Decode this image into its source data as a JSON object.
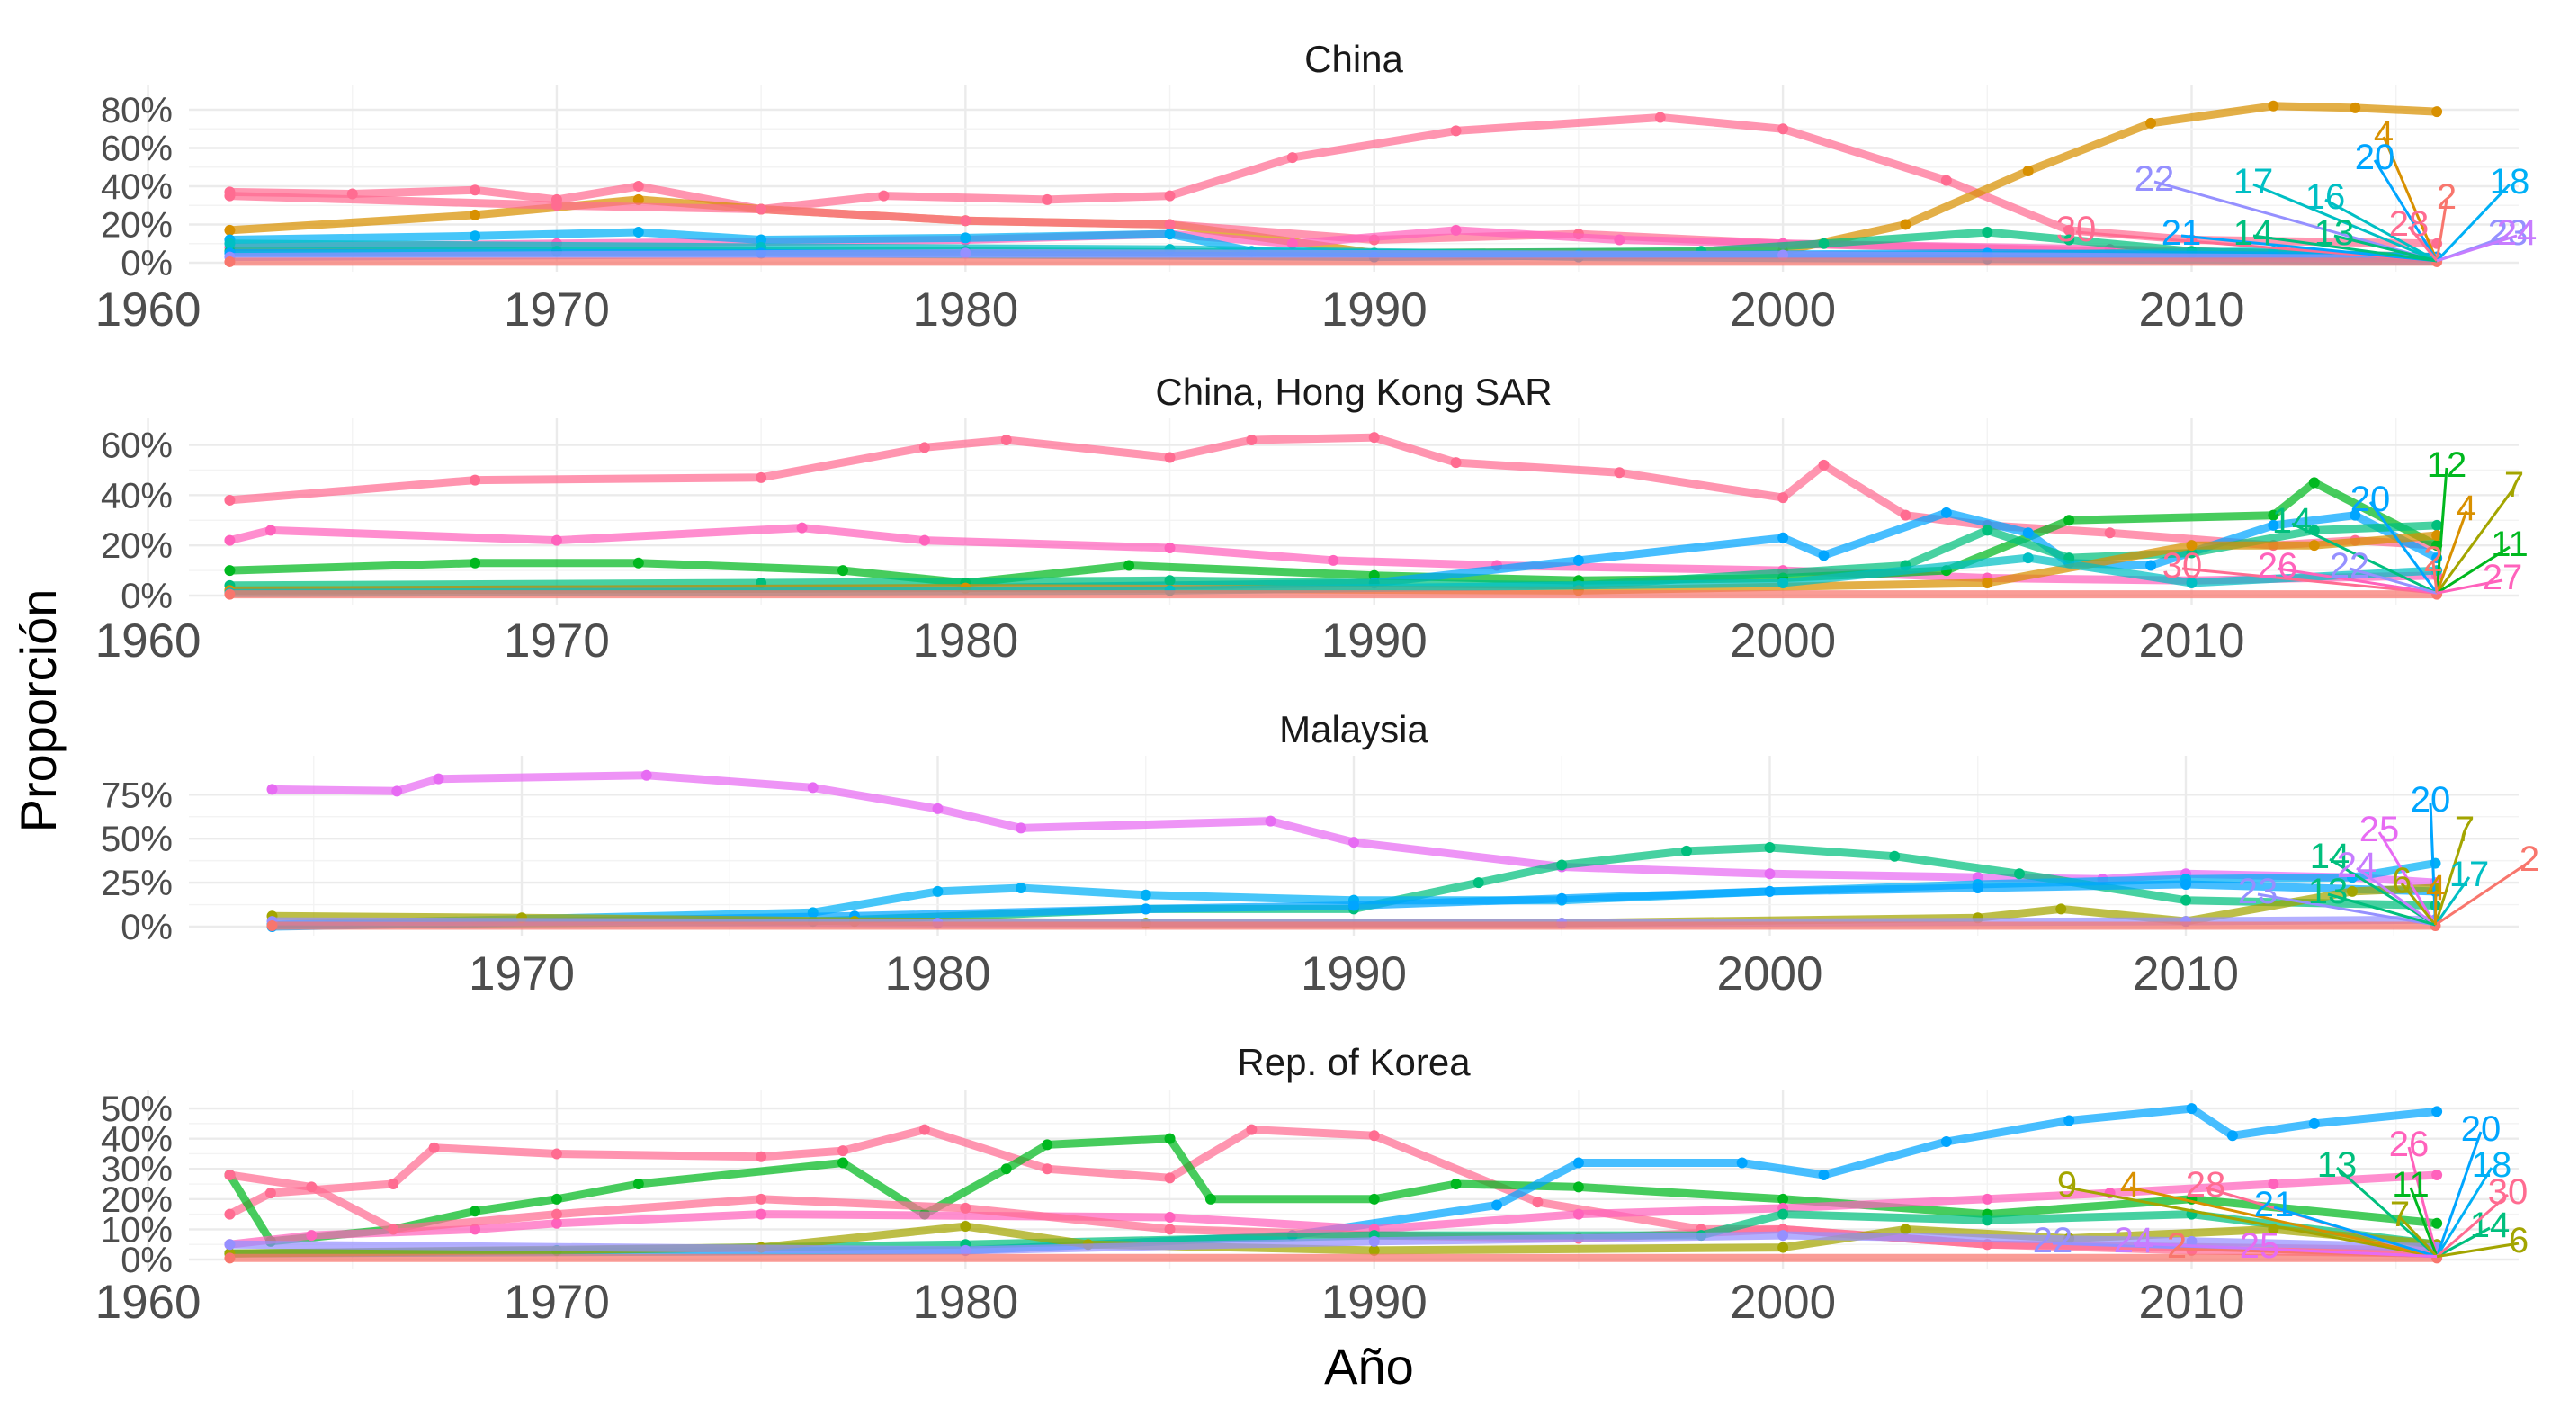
{
  "figure": {
    "xlabel": "Año",
    "ylabel": "Proporción",
    "colors": {
      "2": "#F8766D",
      "4": "#D89000",
      "6": "#A3A500",
      "7": "#A3A500",
      "9": "#A3A500",
      "11": "#00B81F",
      "12": "#00B81F",
      "13": "#00BF7D",
      "14": "#00BF7D",
      "16": "#00BFC4",
      "17": "#00BFC4",
      "18": "#00B0F6",
      "20": "#00A5FF",
      "21": "#00A5FF",
      "22": "#9590FF",
      "23": "#9590FF",
      "24": "#C77CFF",
      "25": "#E76BF3",
      "26": "#FF62BC",
      "27": "#FF62BC",
      "28": "#FF6C91",
      "30": "#FF6C91",
      "flat": "#F8766D"
    }
  },
  "chart_data": [
    {
      "type": "line",
      "title": "China",
      "xlim": [
        1961,
        2018
      ],
      "xticks": [
        "1960",
        "1970",
        "1980",
        "1990",
        "2000",
        "2010"
      ],
      "ylim": [
        0,
        0.88
      ],
      "yticks": [
        {
          "v": 0,
          "label": "0%"
        },
        {
          "v": 0.2,
          "label": "20%"
        },
        {
          "v": 0.4,
          "label": "40%"
        },
        {
          "v": 0.6,
          "label": "60%"
        },
        {
          "v": 0.8,
          "label": "80%"
        }
      ],
      "series": [
        {
          "key": "30",
          "x": [
            1962,
            1965,
            1968,
            1970,
            1972,
            1975,
            1978,
            1982,
            1985,
            1988,
            1992,
            1997,
            2000,
            2004,
            2007,
            2010,
            2016
          ],
          "y": [
            0.37,
            0.36,
            0.38,
            0.33,
            0.4,
            0.28,
            0.35,
            0.33,
            0.35,
            0.55,
            0.69,
            0.76,
            0.7,
            0.43,
            0.17,
            0.12,
            0.1
          ]
        },
        {
          "key": "4",
          "x": [
            1962,
            1968,
            1972,
            1975,
            1980,
            1985,
            1990,
            2000,
            2003,
            2006,
            2009,
            2012,
            2014,
            2016
          ],
          "y": [
            0.17,
            0.25,
            0.33,
            0.28,
            0.22,
            0.2,
            0.05,
            0.06,
            0.2,
            0.48,
            0.73,
            0.82,
            0.81,
            0.79
          ]
        },
        {
          "key": "28",
          "x": [
            1962,
            1970,
            1975,
            1980,
            1985,
            1990,
            1995,
            2000,
            2010,
            2016
          ],
          "y": [
            0.35,
            0.3,
            0.28,
            0.22,
            0.2,
            0.12,
            0.15,
            0.1,
            0.05,
            0.02
          ]
        },
        {
          "key": "26",
          "x": [
            1962,
            1970,
            1980,
            1985,
            1988,
            1992,
            1996,
            2000,
            2008,
            2016
          ],
          "y": [
            0.08,
            0.1,
            0.12,
            0.15,
            0.1,
            0.17,
            0.12,
            0.1,
            0.07,
            0.03
          ]
        },
        {
          "key": "14",
          "x": [
            1962,
            1970,
            1980,
            1990,
            1998,
            2001,
            2005,
            2007,
            2010,
            2016
          ],
          "y": [
            0.06,
            0.06,
            0.06,
            0.05,
            0.06,
            0.1,
            0.16,
            0.12,
            0.06,
            0.03
          ]
        },
        {
          "key": "18",
          "x": [
            1962,
            1968,
            1972,
            1975,
            1980,
            1985,
            1987,
            1995,
            2005,
            2016
          ],
          "y": [
            0.12,
            0.14,
            0.16,
            0.12,
            0.13,
            0.15,
            0.06,
            0.03,
            0.02,
            0.01
          ]
        },
        {
          "key": "16",
          "x": [
            1962,
            1975,
            1985,
            1995,
            2005,
            2012,
            2016
          ],
          "y": [
            0.1,
            0.08,
            0.07,
            0.04,
            0.04,
            0.06,
            0.02
          ]
        },
        {
          "key": "20",
          "x": [
            1962,
            1975,
            1990,
            2005,
            2016
          ],
          "y": [
            0.05,
            0.05,
            0.03,
            0.05,
            0.03
          ]
        },
        {
          "key": "22",
          "x": [
            1962,
            1980,
            2000,
            2016
          ],
          "y": [
            0.03,
            0.05,
            0.04,
            0.02
          ]
        },
        {
          "key": "flat",
          "x": [
            1962,
            2016
          ],
          "y": [
            0.005,
            0.005
          ]
        }
      ],
      "labels": [
        "4",
        "22",
        "17",
        "16",
        "20",
        "2",
        "18",
        "30",
        "21",
        "14",
        "13",
        "28",
        "23",
        "24"
      ]
    },
    {
      "type": "line",
      "title": "China, Hong Kong SAR",
      "xlim": [
        1961,
        2018
      ],
      "xticks": [
        "1960",
        "1970",
        "1980",
        "1990",
        "2000",
        "2010"
      ],
      "ylim": [
        0,
        0.67
      ],
      "yticks": [
        {
          "v": 0,
          "label": "0%"
        },
        {
          "v": 0.2,
          "label": "20%"
        },
        {
          "v": 0.4,
          "label": "40%"
        },
        {
          "v": 0.6,
          "label": "60%"
        }
      ],
      "series": [
        {
          "key": "30",
          "x": [
            1962,
            1968,
            1975,
            1979,
            1981,
            1985,
            1987,
            1990,
            1992,
            1996,
            2000,
            2001,
            2003,
            2005,
            2008,
            2012,
            2014,
            2016
          ],
          "y": [
            0.38,
            0.46,
            0.47,
            0.59,
            0.62,
            0.55,
            0.62,
            0.63,
            0.53,
            0.49,
            0.39,
            0.52,
            0.32,
            0.28,
            0.25,
            0.2,
            0.22,
            0.2
          ]
        },
        {
          "key": "26",
          "x": [
            1962,
            1963,
            1970,
            1976,
            1979,
            1985,
            1989,
            1993,
            2000,
            2005,
            2010,
            2016
          ],
          "y": [
            0.22,
            0.26,
            0.22,
            0.27,
            0.22,
            0.19,
            0.14,
            0.12,
            0.1,
            0.07,
            0.06,
            0.08
          ]
        },
        {
          "key": "12",
          "x": [
            1962,
            1968,
            1972,
            1977,
            1980,
            1984,
            1990,
            1995,
            2000,
            2004,
            2007,
            2012,
            2013,
            2016
          ],
          "y": [
            0.1,
            0.13,
            0.13,
            0.1,
            0.05,
            0.12,
            0.08,
            0.06,
            0.07,
            0.1,
            0.3,
            0.32,
            0.45,
            0.2
          ]
        },
        {
          "key": "20",
          "x": [
            1962,
            1980,
            1990,
            1995,
            2000,
            2001,
            2004,
            2006,
            2007,
            2009,
            2012,
            2014,
            2016
          ],
          "y": [
            0.02,
            0.03,
            0.05,
            0.14,
            0.23,
            0.16,
            0.33,
            0.25,
            0.13,
            0.12,
            0.28,
            0.32,
            0.15
          ]
        },
        {
          "key": "14",
          "x": [
            1962,
            1975,
            1985,
            1995,
            2003,
            2005,
            2007,
            2010,
            2013,
            2016
          ],
          "y": [
            0.04,
            0.05,
            0.06,
            0.04,
            0.12,
            0.26,
            0.15,
            0.17,
            0.26,
            0.28
          ]
        },
        {
          "key": "4",
          "x": [
            1962,
            1980,
            1995,
            2005,
            2010,
            2013,
            2016
          ],
          "y": [
            0.02,
            0.03,
            0.02,
            0.05,
            0.2,
            0.2,
            0.24
          ]
        },
        {
          "key": "16",
          "x": [
            1962,
            1985,
            2000,
            2006,
            2010,
            2016
          ],
          "y": [
            0.01,
            0.02,
            0.05,
            0.15,
            0.05,
            0.1
          ]
        },
        {
          "key": "flat",
          "x": [
            1962,
            2016
          ],
          "y": [
            0.005,
            0.005
          ]
        }
      ],
      "labels": [
        "12",
        "7",
        "20",
        "4",
        "14",
        "11",
        "30",
        "26",
        "22",
        "2",
        "27"
      ]
    },
    {
      "type": "line",
      "title": "Malaysia",
      "xlim": [
        1962,
        2018
      ],
      "xticks": [
        "1970",
        "1980",
        "1990",
        "2000",
        "2010"
      ],
      "ylim": [
        0,
        0.92
      ],
      "yticks": [
        {
          "v": 0,
          "label": "0%"
        },
        {
          "v": 0.25,
          "label": "25%"
        },
        {
          "v": 0.5,
          "label": "50%"
        },
        {
          "v": 0.75,
          "label": "75%"
        }
      ],
      "series": [
        {
          "key": "25",
          "x": [
            1964,
            1967,
            1968,
            1973,
            1977,
            1980,
            1982,
            1988,
            1990,
            1995,
            2000,
            2005,
            2008,
            2010,
            2014,
            2016
          ],
          "y": [
            0.78,
            0.77,
            0.84,
            0.86,
            0.79,
            0.67,
            0.56,
            0.6,
            0.48,
            0.34,
            0.3,
            0.28,
            0.27,
            0.3,
            0.28,
            0.25
          ]
        },
        {
          "key": "14",
          "x": [
            1964,
            1977,
            1985,
            1990,
            1993,
            1995,
            1998,
            2000,
            2003,
            2006,
            2010,
            2016
          ],
          "y": [
            0.01,
            0.03,
            0.1,
            0.1,
            0.25,
            0.35,
            0.43,
            0.45,
            0.4,
            0.3,
            0.15,
            0.12
          ]
        },
        {
          "key": "18",
          "x": [
            1964,
            1977,
            1980,
            1982,
            1985,
            1990,
            1995,
            2000,
            2005,
            2010,
            2014,
            2016
          ],
          "y": [
            0.01,
            0.08,
            0.2,
            0.22,
            0.18,
            0.15,
            0.15,
            0.2,
            0.24,
            0.27,
            0.28,
            0.36
          ]
        },
        {
          "key": "20",
          "x": [
            1964,
            1978,
            1985,
            1990,
            1995,
            2000,
            2005,
            2010,
            2016
          ],
          "y": [
            0.0,
            0.06,
            0.1,
            0.12,
            0.16,
            0.2,
            0.22,
            0.24,
            0.2
          ]
        },
        {
          "key": "6",
          "x": [
            1964,
            1970,
            1978,
            1985,
            1995,
            2005,
            2007,
            2010,
            2014,
            2016
          ],
          "y": [
            0.06,
            0.05,
            0.03,
            0.02,
            0.02,
            0.05,
            0.1,
            0.03,
            0.2,
            0.22
          ]
        },
        {
          "key": "22",
          "x": [
            1964,
            1980,
            1995,
            2010,
            2016
          ],
          "y": [
            0.03,
            0.02,
            0.02,
            0.03,
            0.04
          ]
        },
        {
          "key": "flat",
          "x": [
            1964,
            2016
          ],
          "y": [
            0.005,
            0.005
          ]
        }
      ],
      "labels": [
        "20",
        "25",
        "7",
        "14",
        "24",
        "17",
        "2",
        "6",
        "23",
        "13",
        "4"
      ]
    },
    {
      "type": "line",
      "title": "Rep. of Korea",
      "xlim": [
        1961,
        2018
      ],
      "xticks": [
        "1960",
        "1970",
        "1980",
        "1990",
        "2000",
        "2010"
      ],
      "ylim": [
        0,
        0.53
      ],
      "yticks": [
        {
          "v": 0,
          "label": "0%"
        },
        {
          "v": 0.1,
          "label": "10%"
        },
        {
          "v": 0.2,
          "label": "20%"
        },
        {
          "v": 0.3,
          "label": "30%"
        },
        {
          "v": 0.4,
          "label": "40%"
        },
        {
          "v": 0.5,
          "label": "50%"
        }
      ],
      "series": [
        {
          "key": "30",
          "x": [
            1962,
            1963,
            1966,
            1967,
            1970,
            1975,
            1977,
            1979,
            1982,
            1985,
            1987,
            1990,
            1994,
            1998,
            2000,
            2005,
            2010,
            2016
          ],
          "y": [
            0.15,
            0.22,
            0.25,
            0.37,
            0.35,
            0.34,
            0.36,
            0.43,
            0.3,
            0.27,
            0.43,
            0.41,
            0.19,
            0.1,
            0.1,
            0.05,
            0.03,
            0.02
          ]
        },
        {
          "key": "11",
          "x": [
            1962,
            1963,
            1966,
            1968,
            1970,
            1972,
            1977,
            1979,
            1981,
            1982,
            1985,
            1986,
            1990,
            1992,
            1995,
            2000,
            2005,
            2010,
            2016
          ],
          "y": [
            0.28,
            0.06,
            0.1,
            0.16,
            0.2,
            0.25,
            0.32,
            0.15,
            0.3,
            0.38,
            0.4,
            0.2,
            0.2,
            0.25,
            0.24,
            0.2,
            0.15,
            0.2,
            0.12
          ]
        },
        {
          "key": "20",
          "x": [
            1962,
            1980,
            1988,
            1993,
            1995,
            1999,
            2001,
            2004,
            2007,
            2010,
            2011,
            2013,
            2016
          ],
          "y": [
            0.02,
            0.03,
            0.08,
            0.18,
            0.32,
            0.32,
            0.28,
            0.39,
            0.46,
            0.5,
            0.41,
            0.45,
            0.49
          ]
        },
        {
          "key": "26",
          "x": [
            1962,
            1964,
            1968,
            1970,
            1975,
            1985,
            1990,
            1995,
            2000,
            2005,
            2008,
            2012,
            2016
          ],
          "y": [
            0.05,
            0.08,
            0.1,
            0.12,
            0.15,
            0.14,
            0.1,
            0.15,
            0.17,
            0.2,
            0.22,
            0.25,
            0.28
          ]
        },
        {
          "key": "28",
          "x": [
            1962,
            1964,
            1966,
            1970,
            1975,
            1980,
            1985,
            1990,
            1995,
            2000,
            2005,
            2016
          ],
          "y": [
            0.28,
            0.24,
            0.1,
            0.15,
            0.2,
            0.17,
            0.1,
            0.08,
            0.07,
            0.1,
            0.05,
            0.03
          ]
        },
        {
          "key": "14",
          "x": [
            1962,
            1970,
            1980,
            1990,
            1998,
            2000,
            2005,
            2010,
            2016
          ],
          "y": [
            0.02,
            0.03,
            0.05,
            0.08,
            0.08,
            0.15,
            0.13,
            0.15,
            0.05
          ]
        },
        {
          "key": "6",
          "x": [
            1962,
            1975,
            1980,
            1983,
            1990,
            2000,
            2003,
            2007,
            2012,
            2016
          ],
          "y": [
            0.02,
            0.04,
            0.11,
            0.05,
            0.03,
            0.04,
            0.1,
            0.07,
            0.1,
            0.05
          ]
        },
        {
          "key": "22",
          "x": [
            1962,
            1980,
            1990,
            2000,
            2010,
            2016
          ],
          "y": [
            0.05,
            0.03,
            0.06,
            0.08,
            0.06,
            0.04
          ]
        },
        {
          "key": "flat",
          "x": [
            1962,
            2016
          ],
          "y": [
            0.005,
            0.005
          ]
        }
      ],
      "labels": [
        "20",
        "26",
        "9",
        "4",
        "28",
        "13",
        "11",
        "18",
        "21",
        "7",
        "14",
        "30",
        "22",
        "24",
        "2",
        "25",
        "6"
      ]
    }
  ]
}
